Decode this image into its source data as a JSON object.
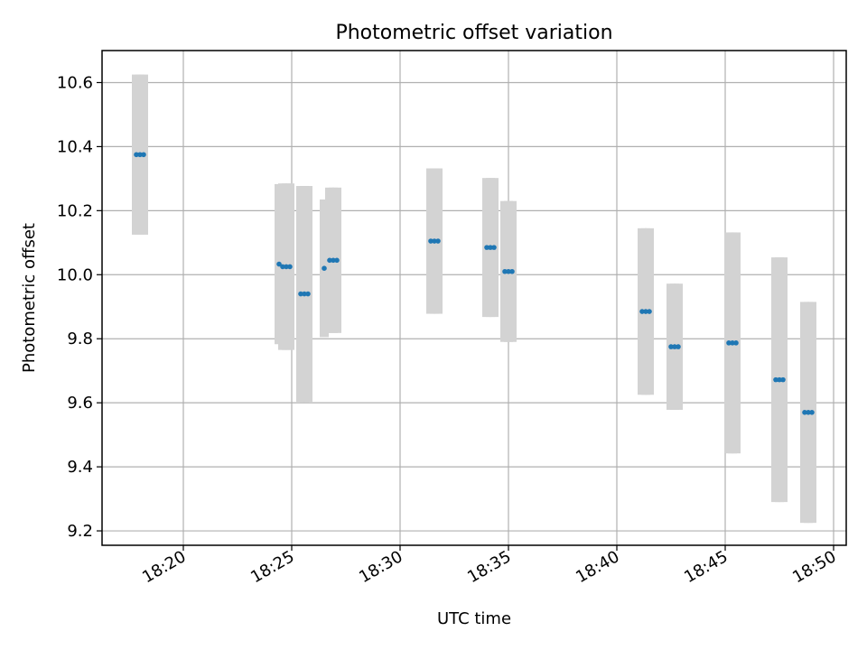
{
  "chart_data": {
    "type": "scatter",
    "title": "Photometric offset variation",
    "xlabel": "UTC time",
    "ylabel": "Photometric offset",
    "x_ticks": [
      "18:20",
      "18:25",
      "18:30",
      "18:35",
      "18:40",
      "18:45",
      "18:50"
    ],
    "y_ticks": [
      "9.2",
      "9.4",
      "9.6",
      "9.8",
      "10.0",
      "10.2",
      "10.4",
      "10.6"
    ],
    "xlim": [
      "18:16:15",
      "18:50:35"
    ],
    "ylim": [
      9.155,
      10.7
    ],
    "grid": true,
    "marker_color": "#1f77b4",
    "errorbar_color": "#d3d3d3",
    "points": [
      {
        "x": "18:17:50",
        "y": 10.375,
        "err": 0.25
      },
      {
        "x": "18:18:00",
        "y": 10.375,
        "err": 0.25
      },
      {
        "x": "18:18:10",
        "y": 10.375,
        "err": 0.25
      },
      {
        "x": "18:24:25",
        "y": 10.033,
        "err": 0.25
      },
      {
        "x": "18:24:35",
        "y": 10.025,
        "err": 0.26
      },
      {
        "x": "18:24:45",
        "y": 10.025,
        "err": 0.26
      },
      {
        "x": "18:24:55",
        "y": 10.025,
        "err": 0.26
      },
      {
        "x": "18:25:25",
        "y": 9.94,
        "err": 0.337
      },
      {
        "x": "18:25:35",
        "y": 9.94,
        "err": 0.337
      },
      {
        "x": "18:25:45",
        "y": 9.94,
        "err": 0.337
      },
      {
        "x": "18:26:30",
        "y": 10.02,
        "err": 0.215
      },
      {
        "x": "18:26:45",
        "y": 10.045,
        "err": 0.227
      },
      {
        "x": "18:26:55",
        "y": 10.045,
        "err": 0.227
      },
      {
        "x": "18:27:05",
        "y": 10.045,
        "err": 0.227
      },
      {
        "x": "18:31:25",
        "y": 10.105,
        "err": 0.227
      },
      {
        "x": "18:31:35",
        "y": 10.105,
        "err": 0.227
      },
      {
        "x": "18:31:45",
        "y": 10.105,
        "err": 0.227
      },
      {
        "x": "18:34:00",
        "y": 10.085,
        "err": 0.217
      },
      {
        "x": "18:34:10",
        "y": 10.085,
        "err": 0.217
      },
      {
        "x": "18:34:20",
        "y": 10.085,
        "err": 0.217
      },
      {
        "x": "18:34:50",
        "y": 10.01,
        "err": 0.22
      },
      {
        "x": "18:35:00",
        "y": 10.01,
        "err": 0.22
      },
      {
        "x": "18:35:10",
        "y": 10.01,
        "err": 0.22
      },
      {
        "x": "18:41:10",
        "y": 9.885,
        "err": 0.26
      },
      {
        "x": "18:41:20",
        "y": 9.885,
        "err": 0.26
      },
      {
        "x": "18:41:30",
        "y": 9.885,
        "err": 0.26
      },
      {
        "x": "18:42:30",
        "y": 9.775,
        "err": 0.197
      },
      {
        "x": "18:42:40",
        "y": 9.775,
        "err": 0.197
      },
      {
        "x": "18:42:50",
        "y": 9.775,
        "err": 0.197
      },
      {
        "x": "18:45:10",
        "y": 9.787,
        "err": 0.345
      },
      {
        "x": "18:45:20",
        "y": 9.787,
        "err": 0.345
      },
      {
        "x": "18:45:30",
        "y": 9.787,
        "err": 0.345
      },
      {
        "x": "18:47:20",
        "y": 9.672,
        "err": 0.382
      },
      {
        "x": "18:47:30",
        "y": 9.672,
        "err": 0.382
      },
      {
        "x": "18:47:40",
        "y": 9.672,
        "err": 0.382
      },
      {
        "x": "18:48:40",
        "y": 9.57,
        "err": 0.345
      },
      {
        "x": "18:48:50",
        "y": 9.57,
        "err": 0.345
      },
      {
        "x": "18:49:00",
        "y": 9.57,
        "err": 0.345
      }
    ]
  }
}
